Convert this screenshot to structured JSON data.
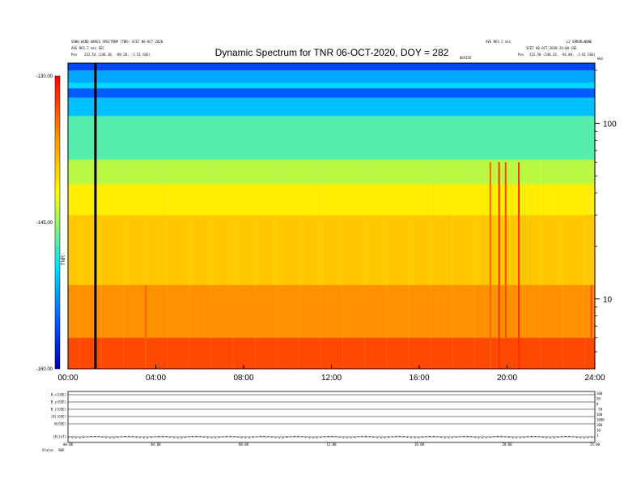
{
  "header": {
    "left_line1": "SOHO-WIND WAVES SPECTRUM (TNR) SCET 06-OCT-2020",
    "left_line2": "AVG RES 2 min SEC",
    "left_line3_prefix": "Pos",
    "left_line3": "232.54 (248.10, -89.28, -2.51 GSE)",
    "right_line1": "AVG RES 2 min",
    "right_top": "L2 ERROR=NONE",
    "right_line2": "SCET 06-OCT-2020 24:00 GSE",
    "right_line3_prefix": "Pos",
    "right_line3": "232.58 (248.33, -94.80, -2.61 GSE)",
    "mid_small": "DEVICE",
    "corner": "kHz"
  },
  "chart_data": {
    "type": "heatmap",
    "title": "Dynamic Spectrum for TNR 06-OCT-2020, DOY = 282",
    "x_ticks": [
      "00:00",
      "04:00",
      "08:00",
      "12:00",
      "16:00",
      "20:00",
      "24:00"
    ],
    "x_range_hours": [
      0,
      24
    ],
    "y_scale": "log",
    "y_range_khz": [
      4,
      220
    ],
    "y_ticks": [
      "100",
      "10"
    ],
    "y_tick_values": [
      100,
      10
    ],
    "colorbar": {
      "range": [
        -160,
        -130
      ],
      "ticks": [
        "-130.00",
        "-145.00",
        "-160.00"
      ],
      "tick_values": [
        -130,
        -145,
        -160
      ],
      "label": "TNR",
      "colors": [
        "#0000aa",
        "#0050ff",
        "#00e5ff",
        "#ffff00",
        "#ff9000",
        "#ff0000"
      ]
    },
    "data_gap_hour": 1.25,
    "bands": [
      {
        "from_khz": 220,
        "to_khz": 200,
        "level": -156
      },
      {
        "from_khz": 200,
        "to_khz": 170,
        "level": -152
      },
      {
        "from_khz": 170,
        "to_khz": 158,
        "level": -150
      },
      {
        "from_khz": 158,
        "to_khz": 140,
        "level": -155
      },
      {
        "from_khz": 140,
        "to_khz": 110,
        "level": -151
      },
      {
        "from_khz": 110,
        "to_khz": 62,
        "level": -147
      },
      {
        "from_khz": 62,
        "to_khz": 45,
        "level": -144
      },
      {
        "from_khz": 45,
        "to_khz": 30,
        "level": -141
      },
      {
        "from_khz": 30,
        "to_khz": 12,
        "level": -139
      },
      {
        "from_khz": 12,
        "to_khz": 6,
        "level": -136
      },
      {
        "from_khz": 6,
        "to_khz": 4,
        "level": -133
      }
    ],
    "bursts": [
      {
        "hour": 3.5,
        "khz_top": 12,
        "level": -134
      },
      {
        "hour": 19.2,
        "khz_top": 60,
        "level": -134
      },
      {
        "hour": 19.6,
        "khz_top": 60,
        "level": -132
      },
      {
        "hour": 19.9,
        "khz_top": 60,
        "level": -133
      },
      {
        "hour": 20.5,
        "khz_top": 60,
        "level": -132
      },
      {
        "hour": 23.8,
        "khz_top": 12,
        "level": -133
      }
    ]
  },
  "bottom_panel": {
    "row_labels": [
      "B_x(GSE)",
      "B_y(GSE)",
      "B_z(GSE)",
      "|B|(GSE)",
      "N(GSE)",
      "|B|(nT)"
    ],
    "right_labels": [
      "100",
      "50",
      "0",
      "-50",
      "100",
      "1000",
      "100",
      "10",
      "1"
    ],
    "x_ticks": [
      "00:00",
      "04:00",
      "08:00",
      "12:00",
      "16:00",
      "20:00",
      "24:00"
    ],
    "footer_left": "Status",
    "footer_val": "SWE"
  }
}
